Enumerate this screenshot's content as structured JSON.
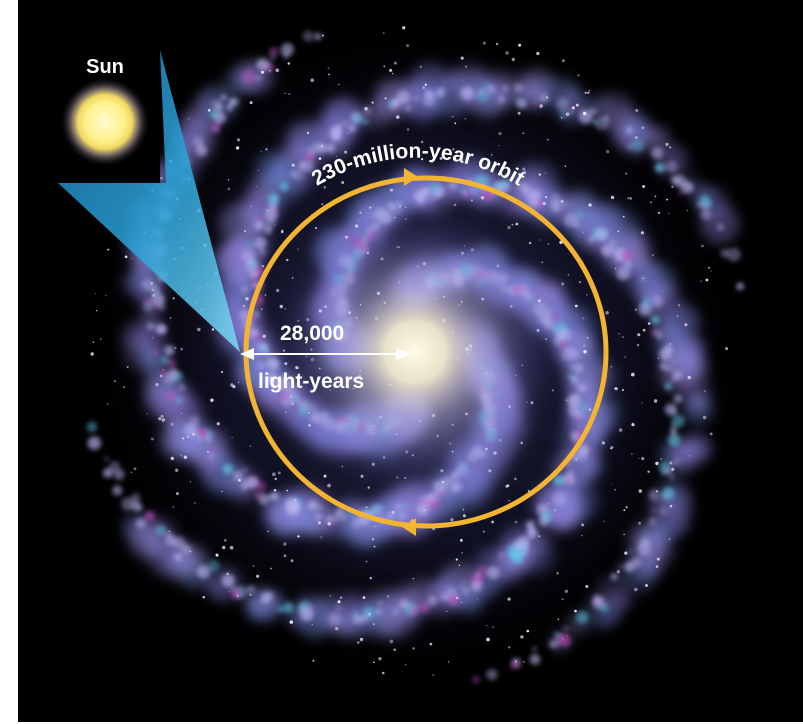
{
  "labels": {
    "sun": "Sun",
    "orbit": "230-million-year orbit",
    "distance_value": "28,000",
    "distance_unit": "light-years"
  },
  "colors": {
    "background": "#000000",
    "orbit": "#f2b431",
    "arrow": "#ffffff",
    "sun_core": "#fff6a8",
    "callout": "#29a8d8",
    "galaxy_arms": "#8a86d8",
    "galaxy_core": "#fffbe6"
  },
  "icons": {
    "sun": "sun-icon",
    "galaxy": "spiral-galaxy-icon"
  }
}
